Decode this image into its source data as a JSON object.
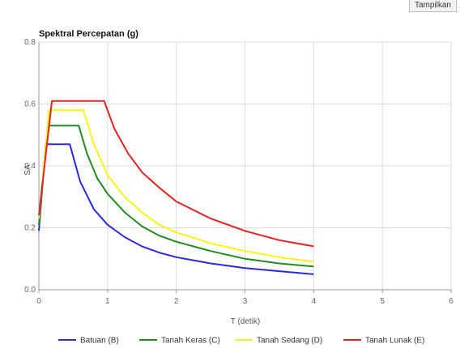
{
  "toolbar": {
    "button_label": "Tampilkan"
  },
  "chart_data": {
    "type": "line",
    "title": "Spektral Percepatan (g)",
    "xlabel": "T (detik)",
    "ylabel": "SA",
    "xlim": [
      0,
      6
    ],
    "ylim": [
      0,
      0.8
    ],
    "xticks": [
      "0",
      "1",
      "2",
      "3",
      "4",
      "5",
      "6"
    ],
    "yticks": [
      "0.0",
      "0.2",
      "0.4",
      "0.6",
      "0.8"
    ],
    "grid": true,
    "legend_position": "bottom",
    "series": [
      {
        "name": "Batuan (B)",
        "color": "#2a2ad6",
        "points": [
          [
            0,
            0.19
          ],
          [
            0.1,
            0.47
          ],
          [
            0.2,
            0.47
          ],
          [
            0.3,
            0.47
          ],
          [
            0.45,
            0.47
          ],
          [
            0.6,
            0.35
          ],
          [
            0.8,
            0.26
          ],
          [
            1.0,
            0.21
          ],
          [
            1.25,
            0.17
          ],
          [
            1.5,
            0.14
          ],
          [
            1.75,
            0.12
          ],
          [
            2.0,
            0.105
          ],
          [
            2.5,
            0.085
          ],
          [
            3.0,
            0.07
          ],
          [
            3.5,
            0.06
          ],
          [
            4.0,
            0.05
          ]
        ]
      },
      {
        "name": "Tanah Keras (C)",
        "color": "#1e8c1e",
        "points": [
          [
            0,
            0.21
          ],
          [
            0.13,
            0.53
          ],
          [
            0.3,
            0.53
          ],
          [
            0.45,
            0.53
          ],
          [
            0.58,
            0.53
          ],
          [
            0.7,
            0.44
          ],
          [
            0.85,
            0.36
          ],
          [
            1.0,
            0.31
          ],
          [
            1.25,
            0.25
          ],
          [
            1.5,
            0.205
          ],
          [
            1.75,
            0.175
          ],
          [
            2.0,
            0.155
          ],
          [
            2.5,
            0.125
          ],
          [
            3.0,
            0.1
          ],
          [
            3.5,
            0.085
          ],
          [
            4.0,
            0.075
          ]
        ]
      },
      {
        "name": "Tanah Sedang (D)",
        "color": "#f5f516",
        "points": [
          [
            0,
            0.23
          ],
          [
            0.15,
            0.58
          ],
          [
            0.3,
            0.58
          ],
          [
            0.5,
            0.58
          ],
          [
            0.65,
            0.58
          ],
          [
            0.8,
            0.47
          ],
          [
            1.0,
            0.37
          ],
          [
            1.25,
            0.3
          ],
          [
            1.5,
            0.25
          ],
          [
            1.75,
            0.21
          ],
          [
            2.0,
            0.185
          ],
          [
            2.5,
            0.15
          ],
          [
            3.0,
            0.125
          ],
          [
            3.5,
            0.105
          ],
          [
            4.0,
            0.09
          ]
        ]
      },
      {
        "name": "Tanah Lunak (E)",
        "color": "#e52222",
        "points": [
          [
            0,
            0.24
          ],
          [
            0.19,
            0.61
          ],
          [
            0.4,
            0.61
          ],
          [
            0.7,
            0.61
          ],
          [
            0.95,
            0.61
          ],
          [
            1.1,
            0.52
          ],
          [
            1.3,
            0.44
          ],
          [
            1.5,
            0.38
          ],
          [
            1.75,
            0.33
          ],
          [
            2.0,
            0.285
          ],
          [
            2.5,
            0.23
          ],
          [
            3.0,
            0.19
          ],
          [
            3.5,
            0.16
          ],
          [
            4.0,
            0.14
          ]
        ]
      }
    ]
  }
}
